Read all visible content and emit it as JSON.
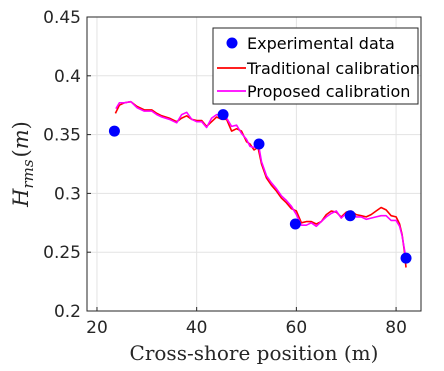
{
  "chart_data": {
    "type": "line",
    "title": "",
    "xlabel": "Cross-shore position (m)",
    "ylabel": {
      "main": "H",
      "subscript": "rms",
      "unit_open": "(",
      "unit": "m",
      "unit_close": ")"
    },
    "xlim": [
      18,
      85
    ],
    "ylim": [
      0.2,
      0.45
    ],
    "xticks": [
      20,
      40,
      60,
      80
    ],
    "yticks": [
      0.2,
      0.25,
      0.3,
      0.35,
      0.4,
      0.45
    ],
    "xtick_labels": [
      "20",
      "40",
      "60",
      "80"
    ],
    "ytick_labels": [
      "0.2",
      "0.25",
      "0.3",
      "0.35",
      "0.4",
      "0.45"
    ],
    "grid": true,
    "legend_position": "top-right",
    "series": [
      {
        "name": "Experimental data",
        "kind": "markers",
        "color": "#0000ff",
        "x": [
          23.5,
          45.3,
          52.5,
          59.8,
          70.8,
          82.0
        ],
        "y": [
          0.353,
          0.367,
          0.342,
          0.274,
          0.281,
          0.245
        ]
      },
      {
        "name": "Traditional calibration",
        "kind": "line",
        "color": "#ff0000",
        "x": [
          23.7,
          24.5,
          25.5,
          26.8,
          28.0,
          29.5,
          31.0,
          32.0,
          33.0,
          34.5,
          36.0,
          37.0,
          38.0,
          39.0,
          40.0,
          41.0,
          42.0,
          43.0,
          44.0,
          45.0,
          46.0,
          47.0,
          48.0,
          49.0,
          50.0,
          50.7,
          51.5,
          52.3,
          53.0,
          54.0,
          55.0,
          56.0,
          57.0,
          58.0,
          59.0,
          60.0,
          61.0,
          62.0,
          63.0,
          64.0,
          65.0,
          66.0,
          67.0,
          68.0,
          69.0,
          70.0,
          71.0,
          72.0,
          73.0,
          74.0,
          75.0,
          76.0,
          77.0,
          78.0,
          79.0,
          80.0,
          80.7,
          81.2,
          81.7,
          82.0
        ],
        "y": [
          0.368,
          0.375,
          0.377,
          0.378,
          0.374,
          0.371,
          0.371,
          0.368,
          0.366,
          0.364,
          0.361,
          0.364,
          0.366,
          0.363,
          0.362,
          0.362,
          0.357,
          0.361,
          0.365,
          0.363,
          0.363,
          0.353,
          0.355,
          0.353,
          0.344,
          0.342,
          0.337,
          0.339,
          0.325,
          0.313,
          0.307,
          0.302,
          0.296,
          0.292,
          0.287,
          0.285,
          0.275,
          0.276,
          0.276,
          0.274,
          0.276,
          0.282,
          0.285,
          0.284,
          0.28,
          0.284,
          0.285,
          0.282,
          0.281,
          0.28,
          0.282,
          0.285,
          0.288,
          0.286,
          0.281,
          0.28,
          0.274,
          0.265,
          0.25,
          0.237
        ]
      },
      {
        "name": "Proposed calibration",
        "kind": "line",
        "color": "#ff00ff",
        "x": [
          23.8,
          24.5,
          25.5,
          26.8,
          28.0,
          29.5,
          31.0,
          32.0,
          33.0,
          34.5,
          36.0,
          37.0,
          38.0,
          39.0,
          40.0,
          41.0,
          42.0,
          43.0,
          44.0,
          45.0,
          46.0,
          47.0,
          48.0,
          49.0,
          50.0,
          50.7,
          51.5,
          52.3,
          53.0,
          54.0,
          55.0,
          56.0,
          57.0,
          58.0,
          59.0,
          60.0,
          61.0,
          62.0,
          63.0,
          64.0,
          65.0,
          66.0,
          67.0,
          68.0,
          69.0,
          70.0,
          71.0,
          72.0,
          73.0,
          74.0,
          75.0,
          76.0,
          77.0,
          78.0,
          79.0,
          80.0,
          80.7,
          81.2,
          81.7,
          82.0
        ],
        "y": [
          0.372,
          0.377,
          0.377,
          0.378,
          0.373,
          0.37,
          0.37,
          0.367,
          0.365,
          0.363,
          0.36,
          0.367,
          0.369,
          0.363,
          0.361,
          0.361,
          0.356,
          0.364,
          0.367,
          0.366,
          0.364,
          0.357,
          0.358,
          0.351,
          0.346,
          0.34,
          0.339,
          0.344,
          0.327,
          0.315,
          0.309,
          0.304,
          0.298,
          0.294,
          0.289,
          0.282,
          0.273,
          0.273,
          0.275,
          0.272,
          0.276,
          0.28,
          0.283,
          0.285,
          0.279,
          0.283,
          0.283,
          0.28,
          0.28,
          0.278,
          0.279,
          0.28,
          0.281,
          0.281,
          0.277,
          0.277,
          0.272,
          0.264,
          0.252,
          0.244
        ]
      }
    ]
  }
}
